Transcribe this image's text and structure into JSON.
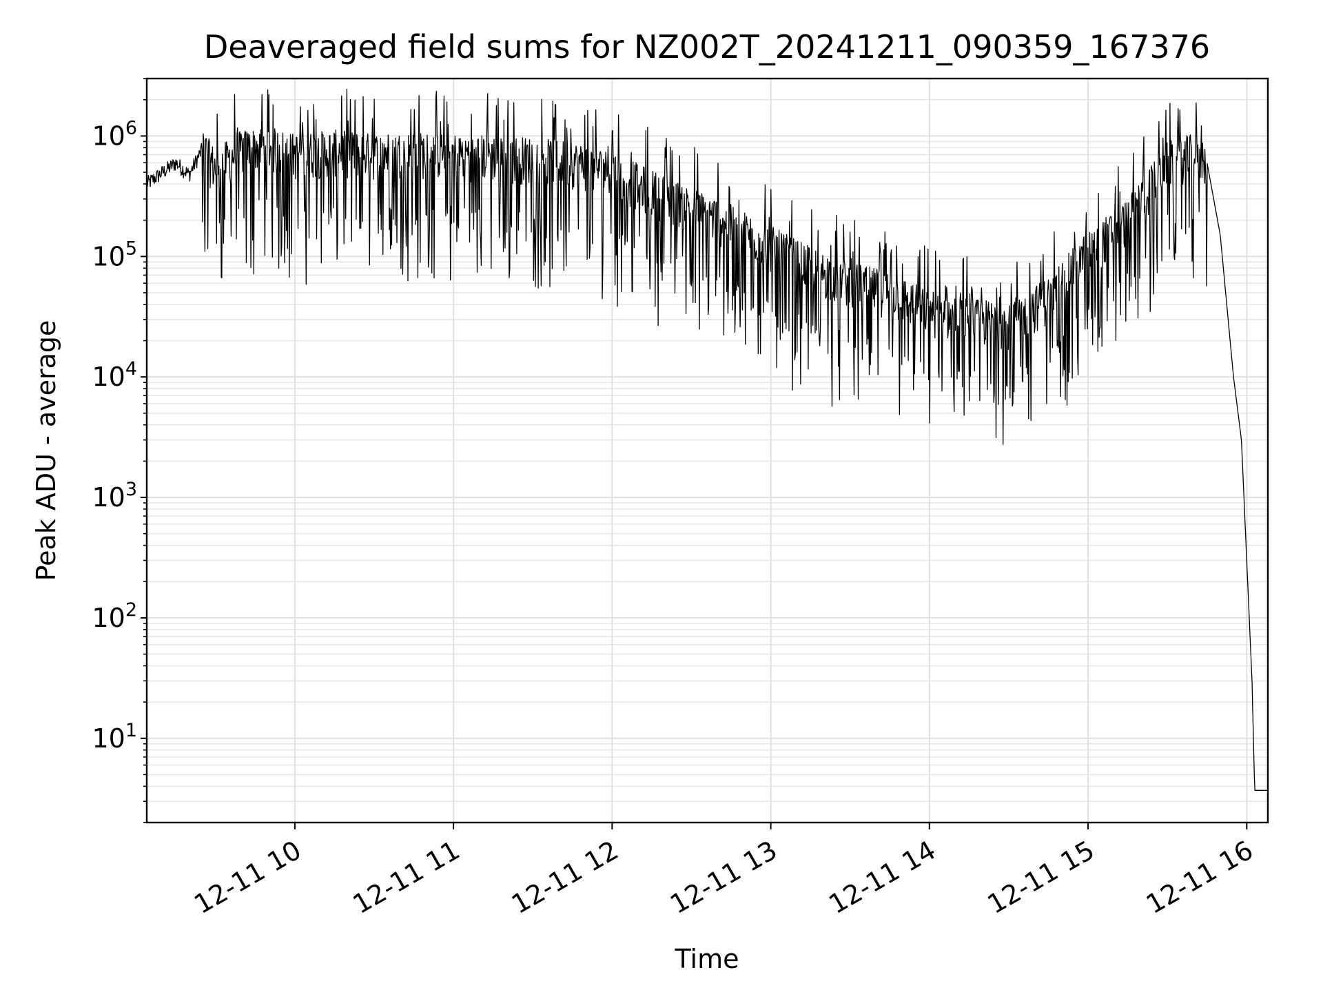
{
  "chart_data": {
    "type": "line",
    "title": "Deaveraged field sums for NZ002T_20241211_090359_167376",
    "xlabel": "Time",
    "ylabel": "Peak ADU - average",
    "yscale": "log",
    "ylim": [
      2,
      3000000
    ],
    "xlim": [
      "12-11 09:04",
      "12-11 16:08"
    ],
    "grid": true,
    "x_tick_labels": [
      "12-11 10",
      "12-11 11",
      "12-11 12",
      "12-11 13",
      "12-11 14",
      "12-11 15",
      "12-11 16"
    ],
    "y_tick_labels": [
      {
        "base": "10",
        "exp": "1"
      },
      {
        "base": "10",
        "exp": "2"
      },
      {
        "base": "10",
        "exp": "3"
      },
      {
        "base": "10",
        "exp": "4"
      },
      {
        "base": "10",
        "exp": "5"
      },
      {
        "base": "10",
        "exp": "6"
      }
    ],
    "series": [
      {
        "color": "#000000",
        "points": [
          [
            "12-11 09:04",
            400000
          ],
          [
            "12-11 09:10",
            500000
          ],
          [
            "12-11 09:15",
            600000
          ],
          [
            "12-11 09:20",
            480000
          ],
          [
            "12-11 09:25",
            780000
          ],
          [
            "12-11 09:30",
            520000
          ],
          [
            "12-11 09:40",
            750000
          ],
          [
            "12-11 09:50",
            800000
          ],
          [
            "12-11 10:00",
            700000
          ],
          [
            "12-11 10:15",
            750000
          ],
          [
            "12-11 10:30",
            700000
          ],
          [
            "12-11 10:45",
            720000
          ],
          [
            "12-11 11:00",
            700000
          ],
          [
            "12-11 11:15",
            680000
          ],
          [
            "12-11 11:30",
            650000
          ],
          [
            "12-11 11:45",
            600000
          ],
          [
            "12-11 12:00",
            500000
          ],
          [
            "12-11 12:15",
            350000
          ],
          [
            "12-11 12:30",
            250000
          ],
          [
            "12-11 12:45",
            180000
          ],
          [
            "12-11 13:00",
            120000
          ],
          [
            "12-11 13:15",
            80000
          ],
          [
            "12-11 13:30",
            60000
          ],
          [
            "12-11 13:45",
            50000
          ],
          [
            "12-11 14:00",
            35000
          ],
          [
            "12-11 14:15",
            30000
          ],
          [
            "12-11 14:30",
            28000
          ],
          [
            "12-11 14:45",
            45000
          ],
          [
            "12-11 15:00",
            110000
          ],
          [
            "12-11 15:15",
            200000
          ],
          [
            "12-11 15:30",
            600000
          ],
          [
            "12-11 15:40",
            700000
          ],
          [
            "12-11 15:45",
            600000
          ],
          [
            "12-11 15:50",
            150000
          ],
          [
            "12-11 15:55",
            10000
          ],
          [
            "12-11 15:58",
            3000
          ],
          [
            "12-11 16:00",
            300
          ],
          [
            "12-11 16:02",
            30
          ],
          [
            "12-11 16:03",
            3.7
          ],
          [
            "12-11 16:08",
            3.7
          ]
        ]
      }
    ]
  }
}
